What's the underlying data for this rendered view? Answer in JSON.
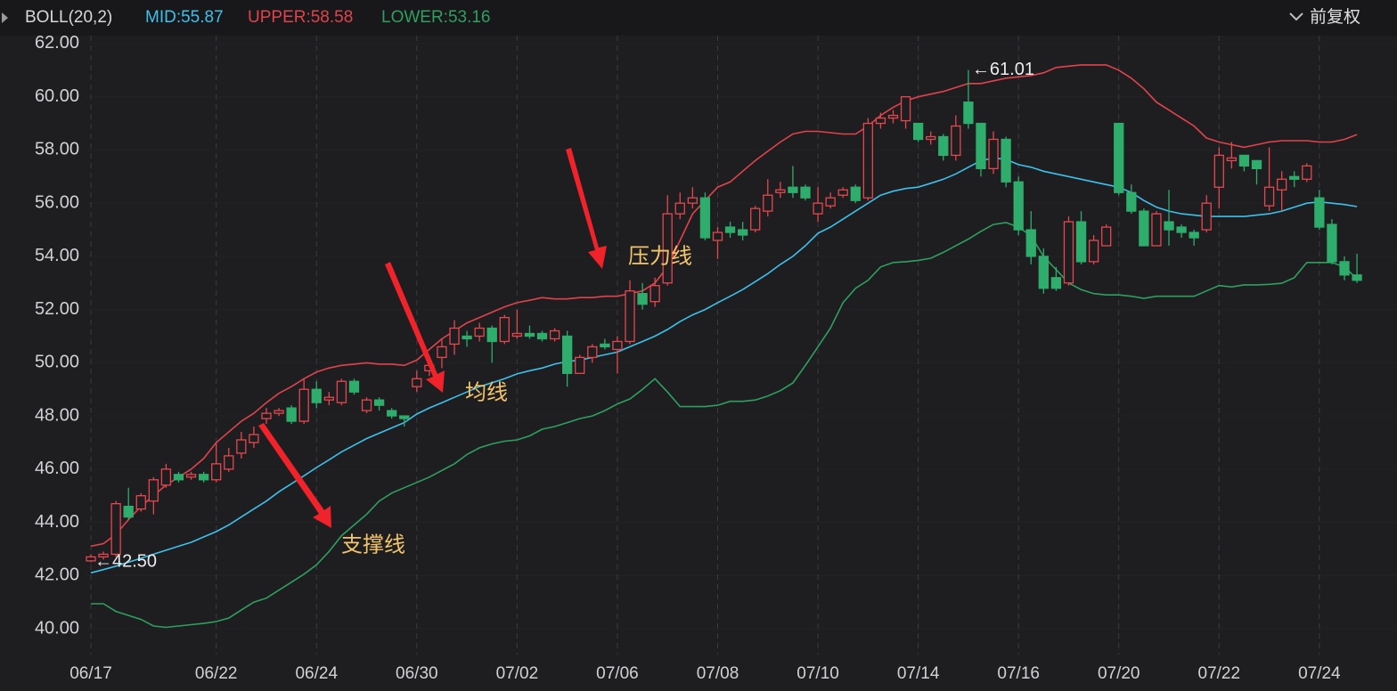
{
  "chart_data": {
    "type": "candlestick",
    "indicator": "BOLL(20,2)",
    "adjust": "前复权",
    "categories": [
      "06/17",
      null,
      null,
      null,
      null,
      null,
      null,
      null,
      null,
      null,
      "06/22",
      null,
      null,
      null,
      null,
      null,
      null,
      null,
      "06/24",
      null,
      null,
      null,
      null,
      null,
      null,
      null,
      "06/30",
      null,
      null,
      null,
      null,
      null,
      null,
      null,
      "07/02",
      null,
      null,
      null,
      null,
      null,
      null,
      null,
      "07/06",
      null,
      null,
      null,
      null,
      null,
      null,
      null,
      "07/08",
      null,
      null,
      null,
      null,
      null,
      null,
      null,
      "07/10",
      null,
      null,
      null,
      null,
      null,
      null,
      null,
      "07/14",
      null,
      null,
      null,
      null,
      null,
      null,
      null,
      "07/16",
      null,
      null,
      null,
      null,
      null,
      null,
      null,
      "07/20",
      null,
      null,
      null,
      null,
      null,
      null,
      null,
      "07/22",
      null,
      null,
      null,
      null,
      null,
      null,
      null,
      "07/24",
      null,
      null,
      null
    ],
    "open": [
      42.55,
      42.7,
      42.8,
      44.6,
      44.5,
      44.8,
      45.4,
      45.8,
      45.7,
      45.8,
      45.6,
      46.0,
      46.6,
      47.0,
      47.9,
      48.1,
      48.3,
      47.8,
      49.0,
      48.6,
      48.5,
      49.3,
      48.2,
      48.6,
      48.2,
      48.0,
      49.1,
      49.7,
      50.2,
      50.7,
      51.0,
      51.0,
      51.3,
      50.8,
      51.0,
      51.1,
      51.1,
      50.9,
      51.0,
      49.6,
      50.2,
      50.7,
      50.5,
      50.8,
      52.6,
      52.3,
      53.0,
      55.6,
      56.0,
      56.2,
      54.6,
      55.1,
      55.0,
      55.0,
      55.7,
      56.4,
      56.6,
      56.6,
      55.6,
      55.9,
      56.3,
      56.6,
      56.2,
      59.0,
      59.2,
      59.1,
      59.0,
      58.4,
      58.5,
      57.8,
      59.8,
      59.0,
      57.3,
      58.4,
      56.8,
      55.0,
      54.0,
      53.2,
      53.0,
      55.3,
      53.8,
      54.4,
      59.0,
      56.4,
      55.7,
      54.4,
      55.3,
      55.1,
      54.9,
      55.0,
      56.6,
      57.6,
      57.8,
      57.6,
      55.9,
      56.5,
      57.0,
      56.9,
      56.2,
      55.2,
      53.8,
      53.3
    ],
    "close": [
      42.7,
      42.8,
      44.7,
      44.2,
      45.0,
      45.6,
      46.0,
      45.6,
      45.8,
      45.6,
      46.2,
      46.5,
      47.1,
      47.3,
      48.1,
      48.2,
      47.8,
      49.0,
      48.5,
      48.7,
      49.3,
      48.9,
      48.6,
      48.4,
      48.0,
      47.9,
      49.4,
      49.9,
      50.6,
      51.3,
      50.9,
      51.3,
      50.8,
      51.7,
      51.1,
      51.0,
      50.9,
      51.2,
      49.6,
      50.2,
      50.6,
      50.6,
      50.8,
      52.7,
      52.2,
      52.9,
      55.6,
      56.0,
      56.2,
      54.7,
      54.9,
      54.9,
      54.8,
      55.8,
      56.3,
      56.5,
      56.4,
      56.2,
      56.0,
      56.2,
      56.5,
      56.1,
      59.0,
      59.2,
      59.3,
      60.0,
      58.4,
      58.5,
      57.8,
      58.9,
      59.0,
      57.3,
      58.4,
      56.8,
      55.0,
      54.0,
      52.8,
      52.8,
      55.3,
      53.8,
      54.6,
      55.1,
      56.4,
      55.7,
      54.4,
      55.6,
      55.0,
      54.9,
      54.7,
      56.0,
      57.8,
      57.7,
      57.4,
      57.3,
      56.6,
      56.9,
      56.9,
      57.4,
      55.1,
      53.8,
      53.3,
      53.1
    ],
    "low": [
      42.5,
      42.6,
      42.7,
      44.1,
      44.4,
      44.3,
      45.3,
      45.5,
      45.6,
      45.5,
      45.5,
      45.9,
      46.4,
      46.8,
      47.7,
      48.0,
      47.7,
      47.7,
      48.3,
      48.4,
      48.4,
      48.8,
      48.1,
      48.2,
      47.9,
      47.6,
      48.9,
      49.5,
      49.8,
      50.3,
      50.6,
      50.8,
      50.0,
      50.7,
      50.9,
      50.9,
      50.8,
      50.8,
      49.1,
      49.6,
      50.0,
      50.5,
      49.6,
      50.7,
      52.0,
      52.1,
      52.9,
      55.4,
      55.8,
      54.6,
      53.9,
      54.7,
      54.6,
      54.9,
      55.5,
      56.2,
      56.2,
      56.1,
      55.3,
      55.8,
      56.2,
      56.0,
      56.1,
      58.8,
      59.0,
      58.8,
      58.3,
      58.2,
      57.6,
      57.6,
      58.8,
      57.0,
      57.1,
      56.6,
      54.8,
      53.7,
      52.6,
      52.7,
      52.9,
      53.7,
      53.7,
      54.4,
      56.3,
      55.6,
      54.4,
      54.4,
      54.4,
      54.7,
      54.4,
      54.9,
      55.8,
      57.3,
      57.2,
      56.7,
      55.7,
      55.7,
      56.6,
      56.8,
      55.0,
      53.7,
      53.1,
      53.0
    ],
    "high": [
      42.8,
      42.9,
      44.8,
      45.3,
      45.1,
      45.7,
      46.2,
      45.9,
      45.9,
      45.9,
      47.0,
      46.8,
      47.4,
      47.6,
      48.3,
      48.3,
      48.4,
      49.4,
      49.3,
      48.9,
      49.4,
      49.4,
      48.7,
      48.7,
      48.3,
      48.0,
      49.7,
      50.1,
      50.9,
      51.6,
      51.2,
      51.5,
      51.4,
      51.8,
      52.0,
      51.4,
      51.2,
      51.3,
      51.2,
      50.3,
      50.7,
      50.9,
      51.0,
      53.1,
      53.0,
      53.2,
      56.3,
      56.4,
      56.6,
      56.4,
      55.1,
      55.3,
      55.3,
      55.9,
      56.9,
      56.8,
      57.4,
      56.7,
      56.6,
      56.4,
      56.6,
      56.7,
      59.2,
      59.4,
      59.5,
      60.0,
      59.0,
      58.7,
      58.6,
      59.3,
      61.01,
      59.0,
      58.7,
      58.5,
      57.0,
      55.7,
      54.3,
      53.6,
      55.5,
      55.7,
      54.8,
      55.2,
      59.0,
      56.7,
      55.8,
      55.7,
      56.5,
      55.2,
      55.0,
      56.3,
      58.1,
      58.3,
      57.8,
      57.6,
      58.1,
      57.2,
      57.2,
      57.5,
      56.5,
      55.4,
      54.0,
      54.1
    ],
    "up_color": "#e5474f",
    "down_color": "#2fad6c",
    "bands": [
      {
        "name": "MID:55.87",
        "color": "#3dc0ea",
        "values": [
          42.1,
          42.22,
          42.35,
          42.5,
          42.65,
          42.8,
          42.95,
          43.1,
          43.25,
          43.45,
          43.65,
          43.9,
          44.2,
          44.5,
          44.8,
          45.15,
          45.45,
          45.75,
          46.06,
          46.35,
          46.65,
          46.9,
          47.15,
          47.35,
          47.55,
          47.75,
          48.07,
          48.3,
          48.5,
          48.7,
          48.9,
          49.1,
          49.25,
          49.4,
          49.58,
          49.7,
          49.8,
          49.95,
          50.05,
          50.1,
          50.2,
          50.3,
          50.4,
          50.6,
          50.8,
          51.0,
          51.25,
          51.55,
          51.8,
          52.0,
          52.26,
          52.5,
          52.75,
          53.05,
          53.35,
          53.7,
          54.0,
          54.4,
          54.87,
          55.1,
          55.4,
          55.7,
          56.0,
          56.3,
          56.45,
          56.55,
          56.6,
          56.75,
          56.9,
          57.1,
          57.35,
          57.6,
          57.7,
          57.65,
          57.45,
          57.35,
          57.2,
          57.1,
          57.0,
          56.9,
          56.8,
          56.7,
          56.6,
          56.4,
          56.1,
          55.85,
          55.7,
          55.6,
          55.55,
          55.5,
          55.5,
          55.5,
          55.5,
          55.55,
          55.6,
          55.7,
          55.85,
          56.0,
          56.05,
          56.0,
          55.95,
          55.87
        ]
      },
      {
        "name": "UPPER:58.58",
        "color": "#e0434c",
        "values": [
          43.1,
          43.2,
          43.55,
          44.1,
          44.6,
          45.0,
          45.4,
          45.7,
          46.0,
          46.4,
          47.0,
          47.4,
          47.8,
          48.1,
          48.5,
          48.85,
          49.1,
          49.4,
          49.65,
          49.8,
          49.9,
          49.95,
          50.0,
          49.95,
          49.95,
          49.9,
          50.1,
          50.5,
          50.9,
          51.2,
          51.5,
          51.7,
          51.9,
          52.1,
          52.26,
          52.35,
          52.45,
          52.4,
          52.4,
          52.45,
          52.45,
          52.5,
          52.5,
          52.6,
          52.7,
          53.0,
          53.6,
          54.6,
          55.6,
          56.1,
          56.6,
          56.8,
          57.2,
          57.6,
          57.95,
          58.3,
          58.6,
          58.7,
          58.7,
          58.65,
          58.6,
          58.6,
          58.9,
          59.3,
          59.6,
          59.85,
          60.0,
          60.1,
          60.2,
          60.35,
          60.5,
          60.5,
          60.6,
          60.7,
          60.75,
          60.8,
          60.9,
          61.1,
          61.15,
          61.2,
          61.2,
          61.2,
          61.0,
          60.7,
          60.3,
          59.8,
          59.5,
          59.2,
          58.9,
          58.45,
          58.3,
          58.2,
          58.1,
          58.2,
          58.3,
          58.35,
          58.35,
          58.35,
          58.3,
          58.3,
          58.4,
          58.58
        ]
      },
      {
        "name": "LOWER:53.16",
        "color": "#2f9f60",
        "values": [
          40.94,
          40.94,
          40.65,
          40.5,
          40.35,
          40.1,
          40.05,
          40.1,
          40.15,
          40.2,
          40.27,
          40.4,
          40.7,
          41.0,
          41.15,
          41.45,
          41.75,
          42.05,
          42.4,
          42.9,
          43.5,
          43.9,
          44.3,
          44.8,
          45.1,
          45.3,
          45.5,
          45.7,
          45.95,
          46.2,
          46.55,
          46.8,
          46.95,
          47.05,
          47.1,
          47.25,
          47.5,
          47.6,
          47.75,
          47.9,
          48.0,
          48.2,
          48.45,
          48.64,
          49.0,
          49.4,
          48.9,
          48.35,
          48.35,
          48.35,
          48.4,
          48.55,
          48.55,
          48.6,
          48.75,
          48.95,
          49.24,
          49.9,
          50.6,
          51.3,
          52.26,
          52.8,
          53.1,
          53.6,
          53.77,
          53.8,
          53.85,
          53.93,
          54.15,
          54.4,
          54.65,
          54.94,
          55.2,
          55.27,
          55.1,
          54.77,
          54.0,
          53.5,
          53.0,
          52.75,
          52.6,
          52.55,
          52.55,
          52.5,
          52.42,
          52.5,
          52.5,
          52.5,
          52.5,
          52.7,
          52.9,
          52.85,
          52.93,
          52.93,
          52.95,
          52.99,
          53.2,
          53.77,
          53.77,
          53.77,
          53.6,
          53.16
        ]
      }
    ],
    "ylim": [
      39.03,
      62.3
    ],
    "yticks": [
      {
        "value": 40,
        "label": "40.00"
      },
      {
        "value": 42,
        "label": "42.00"
      },
      {
        "value": 44,
        "label": "44.00"
      },
      {
        "value": 46,
        "label": "46.00"
      },
      {
        "value": 48,
        "label": "48.00"
      },
      {
        "value": 50,
        "label": "50.00"
      },
      {
        "value": 52,
        "label": "52.00"
      },
      {
        "value": 54,
        "label": "54.00"
      },
      {
        "value": 56,
        "label": "56.00"
      },
      {
        "value": 58,
        "label": "58.00"
      },
      {
        "value": 60,
        "label": "60.00"
      },
      {
        "value": 62,
        "label": "62.00"
      }
    ],
    "grid": true,
    "annotations": [
      {
        "text": "←42.50",
        "value": 42.5
      },
      {
        "text": "←61.01",
        "value": 61.01
      }
    ],
    "callouts": [
      "压力线",
      "均线",
      "支撑线"
    ]
  }
}
